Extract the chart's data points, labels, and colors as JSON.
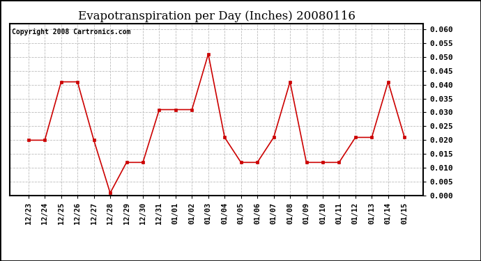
{
  "title": "Evapotranspiration per Day (Inches) 20080116",
  "copyright_text": "Copyright 2008 Cartronics.com",
  "x_labels": [
    "12/23",
    "12/24",
    "12/25",
    "12/26",
    "12/27",
    "12/28",
    "12/29",
    "12/30",
    "12/31",
    "01/01",
    "01/02",
    "01/03",
    "01/04",
    "01/05",
    "01/06",
    "01/07",
    "01/08",
    "01/09",
    "01/10",
    "01/11",
    "01/12",
    "01/13",
    "01/14",
    "01/15"
  ],
  "y_values": [
    0.02,
    0.02,
    0.041,
    0.041,
    0.02,
    0.001,
    0.012,
    0.012,
    0.031,
    0.031,
    0.031,
    0.051,
    0.021,
    0.012,
    0.012,
    0.021,
    0.041,
    0.012,
    0.012,
    0.012,
    0.021,
    0.021,
    0.041,
    0.021
  ],
  "line_color": "#cc0000",
  "marker_style": "s",
  "marker_size": 3,
  "marker_linewidth": 1.0,
  "ylim_min": 0.0,
  "ylim_max": 0.062,
  "ytick_step": 0.005,
  "background_color": "#ffffff",
  "plot_bg_color": "#ffffff",
  "grid_color": "#bbbbbb",
  "grid_linestyle": "--",
  "title_fontsize": 12,
  "copyright_fontsize": 7,
  "tick_fontsize": 7.5,
  "ytick_fontsize": 8,
  "ytick_fontweight": "bold"
}
